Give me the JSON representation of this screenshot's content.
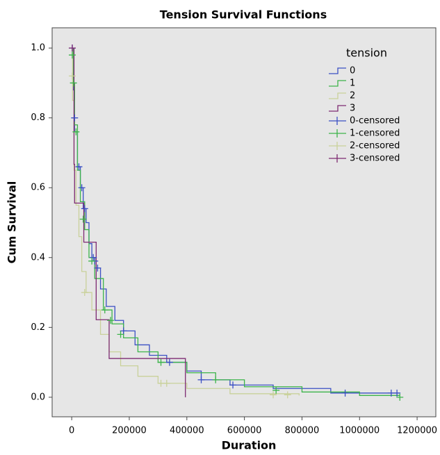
{
  "chart_data": {
    "type": "step",
    "title": "Tension Survival Functions",
    "x_label": "Duration",
    "y_label": "Cum Survival",
    "legend_title": "tension",
    "legend": "upper right",
    "xlim": [
      -68000,
      1265000
    ],
    "ylim": [
      -0.056,
      1.058
    ],
    "xticks": [
      0,
      200000,
      400000,
      600000,
      800000,
      1000000,
      1200000
    ],
    "yticks": [
      {
        "value": 0,
        "label": "0.0"
      },
      0.2,
      0.4,
      0.6,
      0.8,
      {
        "value": 1,
        "label": "1.0"
      }
    ],
    "series": [
      {
        "name": "0",
        "style": "step",
        "color": "#3a4fc4",
        "x": [
          0,
          5000,
          10000,
          20000,
          30000,
          40000,
          50000,
          60000,
          70000,
          85000,
          100000,
          120000,
          150000,
          180000,
          220000,
          270000,
          330000,
          400000,
          450000,
          550000,
          700000,
          900000,
          1140000
        ],
        "values": [
          1.0,
          0.88,
          0.76,
          0.66,
          0.6,
          0.54,
          0.5,
          0.44,
          0.4,
          0.37,
          0.31,
          0.26,
          0.22,
          0.19,
          0.15,
          0.12,
          0.1,
          0.075,
          0.05,
          0.035,
          0.025,
          0.012,
          0.012
        ]
      },
      {
        "name": "1",
        "style": "step",
        "color": "#3cb44a",
        "x": [
          0,
          5000,
          10000,
          20000,
          30000,
          45000,
          60000,
          80000,
          110000,
          140000,
          180000,
          230000,
          300000,
          400000,
          500000,
          600000,
          800000,
          1000000,
          1140000
        ],
        "values": [
          1.0,
          0.9,
          0.78,
          0.65,
          0.56,
          0.48,
          0.4,
          0.34,
          0.25,
          0.21,
          0.17,
          0.13,
          0.1,
          0.07,
          0.05,
          0.03,
          0.015,
          0.005,
          0.005
        ]
      },
      {
        "name": "2",
        "style": "step",
        "color": "#c9d19a",
        "x": [
          0,
          3000,
          8000,
          15000,
          25000,
          35000,
          50000,
          70000,
          100000,
          130000,
          170000,
          230000,
          300000,
          400000,
          550000,
          790000
        ],
        "values": [
          1.0,
          0.85,
          0.65,
          0.55,
          0.46,
          0.36,
          0.3,
          0.25,
          0.18,
          0.13,
          0.09,
          0.06,
          0.04,
          0.025,
          0.01,
          0.005
        ]
      },
      {
        "name": "3",
        "style": "step",
        "color": "#7d2a72",
        "x": [
          0,
          8000,
          10000,
          42000,
          85000,
          130000,
          395000
        ],
        "values": [
          1.0,
          0.667,
          0.556,
          0.444,
          0.222,
          0.111,
          0.0
        ]
      },
      {
        "name": "0-censored",
        "style": "censored",
        "color": "#3a4fc4",
        "x": [
          2000,
          10000,
          25000,
          35000,
          45000,
          75000,
          80000,
          90000,
          180000,
          340000,
          450000,
          560000,
          950000,
          1110000,
          1130000
        ],
        "values": [
          1.0,
          0.8,
          0.66,
          0.6,
          0.54,
          0.4,
          0.39,
          0.37,
          0.19,
          0.1,
          0.05,
          0.035,
          0.012,
          0.012,
          0.012
        ]
      },
      {
        "name": "1-censored",
        "style": "censored",
        "color": "#3cb44a",
        "x": [
          2000,
          6000,
          15000,
          40000,
          70000,
          115000,
          135000,
          170000,
          310000,
          500000,
          710000,
          1140000
        ],
        "values": [
          0.98,
          0.9,
          0.76,
          0.51,
          0.39,
          0.25,
          0.22,
          0.18,
          0.1,
          0.05,
          0.02,
          0.0
        ]
      },
      {
        "name": "2-censored",
        "style": "censored",
        "color": "#c9d19a",
        "x": [
          2000,
          45000,
          310000,
          330000,
          700000,
          750000
        ],
        "values": [
          0.92,
          0.3,
          0.04,
          0.04,
          0.007,
          0.007
        ]
      },
      {
        "name": "3-censored",
        "style": "censored",
        "color": "#7d2a72",
        "x": [
          2000
        ],
        "values": [
          1.0
        ]
      }
    ]
  }
}
